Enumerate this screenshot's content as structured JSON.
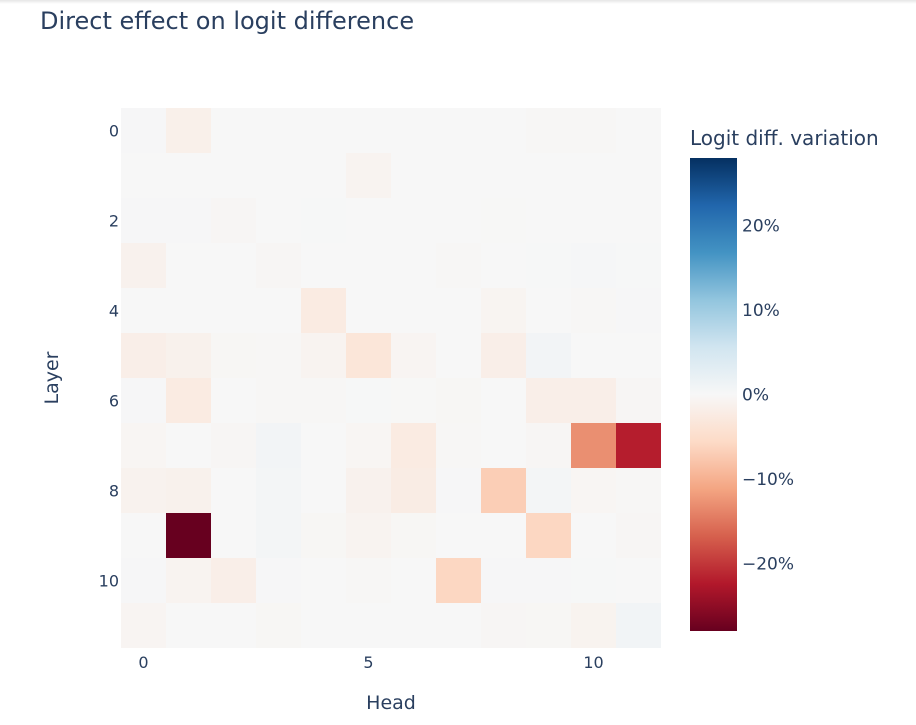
{
  "chart_data": {
    "type": "heatmap",
    "title": "Direct effect on logit difference",
    "xlabel": "Head",
    "ylabel": "Layer",
    "x": [
      0,
      1,
      2,
      3,
      4,
      5,
      6,
      7,
      8,
      9,
      10,
      11
    ],
    "y": [
      0,
      1,
      2,
      3,
      4,
      5,
      6,
      7,
      8,
      9,
      10,
      11
    ],
    "x_ticks": [
      0,
      5,
      10
    ],
    "x_tick_labels": [
      "0",
      "5",
      "10"
    ],
    "y_ticks": [
      0,
      2,
      4,
      6,
      8,
      10
    ],
    "y_tick_labels": [
      "0",
      "2",
      "4",
      "6",
      "8",
      "10"
    ],
    "z": [
      [
        0.2,
        -1.5,
        0.0,
        0.0,
        0.0,
        0.0,
        0.0,
        0.0,
        0.0,
        -0.2,
        -0.2,
        0.0
      ],
      [
        0.0,
        0.0,
        0.0,
        0.0,
        0.0,
        -0.8,
        0.0,
        0.0,
        0.0,
        0.0,
        0.0,
        0.0
      ],
      [
        0.2,
        0.2,
        -0.4,
        0.0,
        0.1,
        0.0,
        0.0,
        0.0,
        -0.1,
        0.0,
        0.0,
        0.0
      ],
      [
        -1.2,
        0.0,
        0.0,
        -0.4,
        0.0,
        0.0,
        0.0,
        -0.2,
        0.0,
        0.1,
        0.3,
        0.1
      ],
      [
        0.0,
        0.0,
        0.0,
        0.0,
        -2.5,
        0.0,
        0.0,
        0.0,
        -0.7,
        0.0,
        -0.2,
        0.2
      ],
      [
        -1.8,
        -1.3,
        -0.3,
        -0.2,
        -0.8,
        -3.5,
        -0.6,
        0.0,
        -1.8,
        0.8,
        0.0,
        0.0
      ],
      [
        0.2,
        -2.5,
        0.0,
        -0.2,
        -0.2,
        0.1,
        -0.1,
        -0.3,
        0.0,
        -1.8,
        -1.8,
        -0.4
      ],
      [
        -0.5,
        0.0,
        -0.4,
        0.8,
        0.0,
        -0.5,
        -2.5,
        -0.2,
        0.0,
        -0.4,
        -13.0,
        -22.0
      ],
      [
        -1.0,
        -1.3,
        0.0,
        0.6,
        0.0,
        -1.2,
        -2.2,
        0.2,
        -7.0,
        0.6,
        -0.5,
        -0.2
      ],
      [
        0.0,
        -28.0,
        0.0,
        0.6,
        -0.3,
        -0.8,
        -0.3,
        0.0,
        0.0,
        -6.0,
        0.0,
        -0.4
      ],
      [
        0.2,
        -0.8,
        -1.8,
        0.2,
        0.0,
        -0.2,
        0.0,
        -6.0,
        0.2,
        0.2,
        0.1,
        0.0
      ],
      [
        -0.6,
        0.0,
        0.0,
        -0.3,
        0.0,
        0.0,
        0.0,
        0.0,
        -0.4,
        -0.3,
        -0.9,
        0.9
      ]
    ],
    "zmin": -28,
    "zmax": 28,
    "colorscale": "RdBu",
    "colorbar": {
      "title": "Logit diff. variation",
      "tickvals": [
        20,
        10,
        0,
        -10,
        -20
      ],
      "ticktext": [
        "20%",
        "10%",
        "0%",
        "−10%",
        "−20%"
      ]
    }
  },
  "colors": {
    "text": "#2a3f5f",
    "plot_background": "#f7f7f7",
    "page_background": "#ffffff"
  }
}
